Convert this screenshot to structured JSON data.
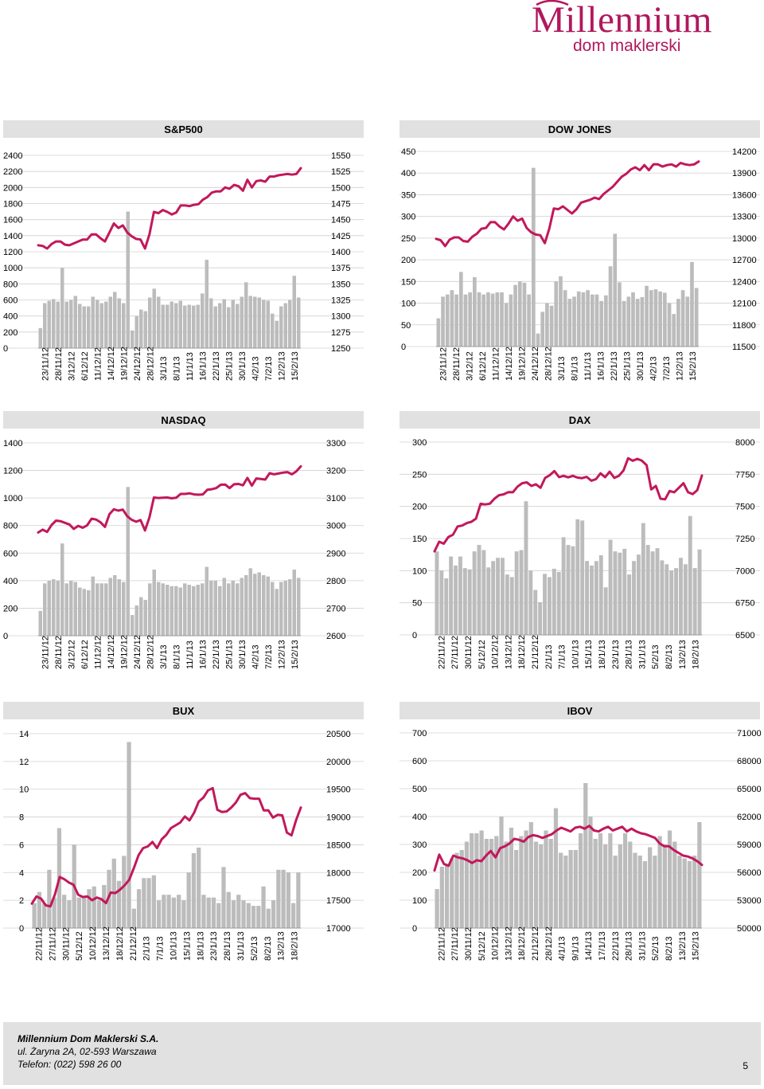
{
  "logo": {
    "main": "Millennium",
    "sub": "dom maklerski",
    "color": "#b1185d"
  },
  "colors": {
    "bars": "#bcbcbc",
    "line": "#c2185b",
    "header": "#e1e1e1"
  },
  "footer": {
    "company": "Millennium Dom Maklerski S.A.",
    "address": "ul. Żaryna 2A, 02-593 Warszawa",
    "phone": "Telefon: (022) 598 26 00",
    "page": "5"
  },
  "chart_data": [
    {
      "type": "bar+line",
      "title": "S&P500",
      "left_ticks": [
        "0",
        "200",
        "400",
        "600",
        "800",
        "1000",
        "1200",
        "1400",
        "1600",
        "1800",
        "2000",
        "2200",
        "2400"
      ],
      "right_ticks": [
        "1250",
        "1275",
        "1300",
        "1325",
        "1350",
        "1375",
        "1400",
        "1425",
        "1450",
        "1475",
        "1500",
        "1525",
        "1550"
      ],
      "left_range": [
        0,
        2400
      ],
      "right_range": [
        1250,
        1550
      ],
      "x_labels": [
        "23/11/12",
        "28/11/12",
        "3/12/12",
        "6/12/12",
        "11/12/12",
        "14/12/12",
        "19/12/12",
        "24/12/12",
        "28/12/12",
        "3/1/13",
        "8/1/13",
        "11/1/13",
        "16/1/13",
        "22/1/13",
        "25/1/13",
        "30/1/13",
        "4/2/13",
        "7/2/13",
        "12/2/13",
        "15/2/13"
      ],
      "bars": [
        250,
        560,
        590,
        610,
        580,
        1000,
        580,
        600,
        650,
        550,
        520,
        520,
        640,
        600,
        560,
        580,
        640,
        700,
        620,
        560,
        1700,
        220,
        400,
        480,
        460,
        630,
        740,
        640,
        540,
        540,
        580,
        560,
        590,
        530,
        540,
        530,
        540,
        680,
        1100,
        620,
        520,
        560,
        610,
        510,
        600,
        550,
        640,
        820,
        650,
        640,
        630,
        600,
        590,
        430,
        340,
        520,
        560,
        600,
        900,
        630
      ],
      "line": [
        1410,
        1409,
        1405,
        1412,
        1416,
        1416,
        1411,
        1410,
        1413,
        1416,
        1419,
        1419,
        1427,
        1427,
        1421,
        1416,
        1430,
        1444,
        1437,
        1441,
        1430,
        1424,
        1420,
        1419,
        1405,
        1427,
        1462,
        1460,
        1465,
        1462,
        1458,
        1461,
        1472,
        1472,
        1471,
        1473,
        1474,
        1481,
        1485,
        1492,
        1494,
        1494,
        1500,
        1498,
        1504,
        1502,
        1495,
        1512,
        1500,
        1510,
        1511,
        1509,
        1517,
        1517,
        1519,
        1520,
        1521,
        1520,
        1521,
        1530
      ]
    },
    {
      "type": "bar+line",
      "title": "DOW JONES",
      "left_ticks": [
        "0",
        "50",
        "100",
        "150",
        "200",
        "250",
        "300",
        "350",
        "400",
        "450"
      ],
      "right_ticks": [
        "11500",
        "11800",
        "12100",
        "12400",
        "12700",
        "13000",
        "13300",
        "13600",
        "13900",
        "14200"
      ],
      "left_range": [
        0,
        450
      ],
      "right_range": [
        11500,
        14200
      ],
      "x_labels": [
        "23/11/12",
        "28/11/12",
        "3/12/12",
        "6/12/12",
        "11/12/12",
        "14/12/12",
        "19/12/12",
        "24/12/12",
        "28/12/12",
        "3/1/13",
        "8/1/13",
        "11/1/13",
        "16/1/13",
        "22/1/13",
        "25/1/13",
        "30/1/13",
        "4/2/13",
        "7/2/13",
        "12/2/13",
        "15/2/13"
      ],
      "bars": [
        65,
        115,
        120,
        130,
        120,
        172,
        120,
        125,
        160,
        125,
        120,
        125,
        122,
        125,
        125,
        100,
        120,
        142,
        150,
        147,
        120,
        412,
        30,
        80,
        100,
        94,
        150,
        162,
        130,
        110,
        115,
        127,
        125,
        130,
        120,
        120,
        105,
        118,
        185,
        260,
        148,
        105,
        115,
        125,
        110,
        114,
        140,
        130,
        132,
        127,
        124,
        100,
        75,
        110,
        130,
        115,
        195,
        135
      ],
      "line": [
        12990,
        12970,
        12890,
        12980,
        13010,
        13010,
        12960,
        12950,
        13020,
        13060,
        13130,
        13140,
        13220,
        13220,
        13160,
        13120,
        13200,
        13300,
        13240,
        13270,
        13140,
        13080,
        13050,
        13040,
        12930,
        13130,
        13410,
        13400,
        13440,
        13390,
        13340,
        13400,
        13490,
        13510,
        13530,
        13560,
        13540,
        13610,
        13660,
        13710,
        13780,
        13850,
        13890,
        13950,
        13980,
        13940,
        14010,
        13940,
        14020,
        14020,
        13990,
        14010,
        14020,
        13990,
        14040,
        14020,
        14010,
        14020,
        14060
      ]
    },
    {
      "type": "bar+line",
      "title": "NASDAQ",
      "left_ticks": [
        "0",
        "200",
        "400",
        "600",
        "800",
        "1000",
        "1200",
        "1400"
      ],
      "right_ticks": [
        "2600",
        "2700",
        "2800",
        "2900",
        "3000",
        "3100",
        "3200",
        "3300"
      ],
      "left_range": [
        0,
        1400
      ],
      "right_range": [
        2600,
        3300
      ],
      "x_labels": [
        "23/11/12",
        "28/11/12",
        "3/12/12",
        "6/12/12",
        "11/12/12",
        "14/12/12",
        "19/12/12",
        "24/12/12",
        "28/12/12",
        "3/1/13",
        "8/1/13",
        "11/1/13",
        "16/1/13",
        "22/1/13",
        "25/1/13",
        "30/1/13",
        "4/2/13",
        "7/2/13",
        "12/2/13",
        "15/2/13"
      ],
      "bars": [
        180,
        380,
        400,
        410,
        400,
        670,
        380,
        400,
        390,
        350,
        340,
        330,
        430,
        380,
        380,
        380,
        420,
        440,
        410,
        390,
        1080,
        150,
        220,
        280,
        260,
        380,
        480,
        390,
        380,
        370,
        360,
        360,
        350,
        380,
        370,
        360,
        370,
        380,
        500,
        400,
        400,
        360,
        420,
        380,
        400,
        380,
        420,
        440,
        490,
        450,
        460,
        440,
        430,
        390,
        340,
        390,
        400,
        410,
        480,
        420
      ],
      "line": [
        2975,
        2985,
        2977,
        3002,
        3018,
        3016,
        3010,
        3004,
        2988,
        2999,
        2992,
        3001,
        3025,
        3022,
        3012,
        2995,
        3041,
        3059,
        3054,
        3058,
        3034,
        3021,
        3014,
        3020,
        2982,
        3030,
        3102,
        3100,
        3101,
        3102,
        3099,
        3101,
        3115,
        3115,
        3117,
        3113,
        3112,
        3113,
        3130,
        3132,
        3136,
        3148,
        3149,
        3136,
        3150,
        3151,
        3146,
        3173,
        3145,
        3171,
        3169,
        3167,
        3190,
        3186,
        3189,
        3192,
        3194,
        3186,
        3197,
        3215
      ]
    },
    {
      "type": "bar+line",
      "title": "DAX",
      "left_ticks": [
        "0",
        "50",
        "100",
        "150",
        "200",
        "250",
        "300"
      ],
      "right_ticks": [
        "6500",
        "6750",
        "7000",
        "7250",
        "7500",
        "7750",
        "8000"
      ],
      "left_range": [
        0,
        300
      ],
      "right_range": [
        6500,
        8000
      ],
      "x_labels": [
        "22/11/12",
        "27/11/12",
        "30/11/12",
        "5/12/12",
        "10/12/12",
        "13/12/12",
        "18/12/12",
        "21/12/12",
        "2/1/13",
        "7/1/13",
        "10/1/13",
        "15/1/13",
        "18/1/13",
        "23/1/13",
        "28/1/13",
        "31/1/13",
        "5/2/13",
        "8/2/13",
        "13/2/13",
        "18/2/13"
      ],
      "bars": [
        130,
        100,
        88,
        122,
        108,
        122,
        104,
        102,
        130,
        140,
        132,
        105,
        115,
        120,
        120,
        94,
        90,
        130,
        132,
        208,
        100,
        70,
        51,
        95,
        90,
        103,
        98,
        152,
        140,
        138,
        180,
        178,
        115,
        108,
        115,
        124,
        74,
        148,
        130,
        128,
        134,
        94,
        115,
        125,
        174,
        140,
        130,
        135,
        116,
        110,
        100,
        104,
        120,
        110,
        185,
        104,
        133
      ],
      "line": [
        7150,
        7225,
        7210,
        7262,
        7280,
        7344,
        7351,
        7370,
        7380,
        7405,
        7520,
        7515,
        7521,
        7560,
        7587,
        7594,
        7611,
        7610,
        7654,
        7680,
        7687,
        7660,
        7672,
        7645,
        7722,
        7743,
        7775,
        7728,
        7738,
        7726,
        7738,
        7724,
        7720,
        7730,
        7700,
        7712,
        7757,
        7727,
        7770,
        7722,
        7738,
        7780,
        7875,
        7855,
        7870,
        7855,
        7820,
        7632,
        7660,
        7560,
        7555,
        7620,
        7610,
        7645,
        7680,
        7610,
        7595,
        7627,
        7740
      ]
    },
    {
      "type": "bar+line",
      "title": "BUX",
      "left_ticks": [
        "0",
        "2",
        "4",
        "6",
        "8",
        "10",
        "12",
        "14"
      ],
      "right_ticks": [
        "17000",
        "17500",
        "18000",
        "18500",
        "19000",
        "19500",
        "20000",
        "20500"
      ],
      "left_range": [
        0,
        14
      ],
      "right_range": [
        17000,
        20500
      ],
      "x_labels": [
        "22/11/12",
        "27/11/12",
        "30/11/12",
        "5/12/12",
        "10/12/12",
        "13/12/12",
        "18/12/12",
        "21/12/12",
        "2/1/13",
        "7/1/13",
        "10/1/13",
        "15/1/13",
        "18/1/13",
        "23/1/13",
        "28/1/13",
        "31/1/13",
        "5/2/13",
        "8/2/13",
        "13/2/13",
        "18/2/13"
      ],
      "bars": [
        1.8,
        2.6,
        1.8,
        4.2,
        2.2,
        7.2,
        2.4,
        2.0,
        6.0,
        2.2,
        2.2,
        2.8,
        3.0,
        2.0,
        3.1,
        4.2,
        5.0,
        3.4,
        5.2,
        13.4,
        1.4,
        2.8,
        3.6,
        3.6,
        3.8,
        2.0,
        2.4,
        2.4,
        2.2,
        2.4,
        2.0,
        4.0,
        5.4,
        5.8,
        2.4,
        2.2,
        2.2,
        1.8,
        4.4,
        2.6,
        2.0,
        2.4,
        2.0,
        1.8,
        1.6,
        1.6,
        3.0,
        1.4,
        2.0,
        4.2,
        4.2,
        4.0,
        1.8,
        4.0
      ],
      "line": [
        17440,
        17570,
        17530,
        17410,
        17390,
        17610,
        17920,
        17880,
        17820,
        17780,
        17600,
        17560,
        17570,
        17500,
        17550,
        17520,
        17450,
        17640,
        17630,
        17690,
        17770,
        17870,
        18080,
        18310,
        18440,
        18470,
        18550,
        18440,
        18600,
        18680,
        18800,
        18850,
        18900,
        19010,
        18940,
        19080,
        19280,
        19350,
        19480,
        19520,
        19130,
        19090,
        19100,
        19170,
        19260,
        19400,
        19430,
        19340,
        19330,
        19330,
        19120,
        19120,
        18990,
        19040,
        19030,
        18720,
        18670,
        18950,
        19170
      ]
    },
    {
      "type": "bar+line",
      "title": "IBOV",
      "left_ticks": [
        "0",
        "100",
        "200",
        "300",
        "400",
        "500",
        "600",
        "700"
      ],
      "right_ticks": [
        "50000",
        "53000",
        "56000",
        "59000",
        "62000",
        "65000",
        "68000",
        "71000"
      ],
      "left_range": [
        0,
        700
      ],
      "right_range": [
        50000,
        71000
      ],
      "x_labels": [
        "22/11/12",
        "27/11/12",
        "30/11/12",
        "5/12/12",
        "10/12/12",
        "13/12/12",
        "18/12/12",
        "21/12/12",
        "28/12/12",
        "4/1/13",
        "9/1/13",
        "14/1/13",
        "17/1/13",
        "22/1/13",
        "28/1/13",
        "31/1/13",
        "5/2/13",
        "8/2/13",
        "13/2/13",
        "15/2/13"
      ],
      "bars": [
        140,
        220,
        230,
        250,
        270,
        280,
        310,
        340,
        340,
        350,
        320,
        320,
        330,
        400,
        310,
        360,
        280,
        330,
        350,
        380,
        310,
        300,
        350,
        320,
        430,
        270,
        260,
        280,
        280,
        340,
        520,
        400,
        320,
        340,
        300,
        340,
        260,
        300,
        340,
        310,
        270,
        260,
        240,
        290,
        260,
        330,
        300,
        350,
        310,
        260,
        250,
        240,
        260,
        380
      ],
      "line": [
        56200,
        57900,
        56900,
        56700,
        57800,
        57600,
        57500,
        57300,
        57000,
        57300,
        57200,
        57800,
        58300,
        57600,
        58600,
        58800,
        59100,
        59600,
        59500,
        59300,
        59800,
        60000,
        59900,
        59700,
        59900,
        60100,
        60500,
        60800,
        60600,
        60400,
        60800,
        60900,
        60700,
        61000,
        60500,
        60400,
        60700,
        60900,
        60500,
        60700,
        60900,
        60400,
        60700,
        60400,
        60200,
        60100,
        59900,
        59700,
        59100,
        58800,
        58800,
        58400,
        58100,
        57800,
        57700,
        57500,
        57200,
        56800
      ]
    }
  ]
}
